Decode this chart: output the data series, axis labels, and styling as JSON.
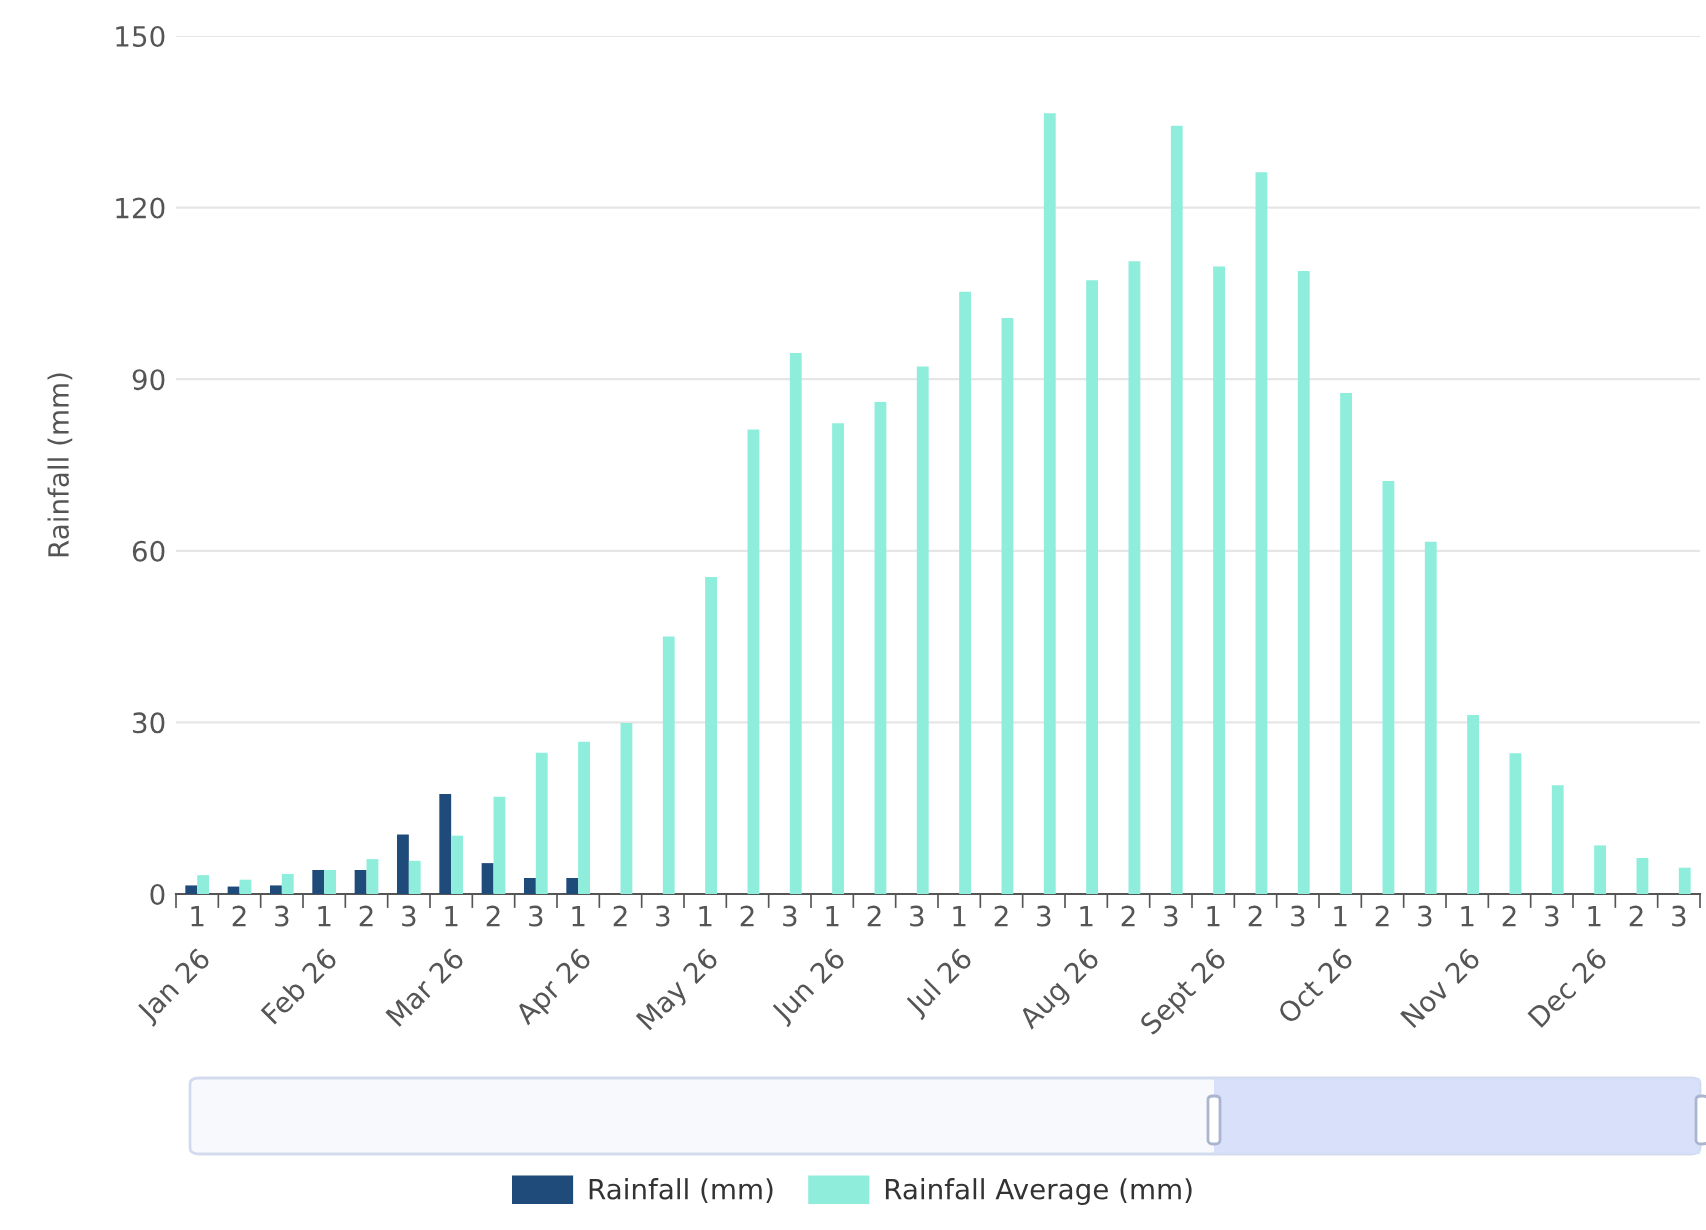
{
  "chart_data": {
    "type": "bar",
    "ylabel": "Rainfall (mm)",
    "categories": [
      "1",
      "2",
      "3",
      "1",
      "2",
      "3",
      "1",
      "2",
      "3",
      "1",
      "2",
      "3",
      "1",
      "2",
      "3",
      "1",
      "2",
      "3",
      "1",
      "2",
      "3",
      "1",
      "2",
      "3",
      "1",
      "2",
      "3",
      "1",
      "2",
      "3",
      "1",
      "2",
      "3",
      "1",
      "2",
      "3"
    ],
    "annotations": [
      "Jan 26",
      "Feb 26",
      "Mar 26",
      "Apr 26",
      "May 26",
      "Jun 26",
      "Jul 26",
      "Aug 26",
      "Sept 26",
      "Oct 26",
      "Nov 26",
      "Dec 26"
    ],
    "series": [
      {
        "name": "Rainfall (mm)",
        "color": "#1f4b7a",
        "values": [
          1.5,
          1.3,
          1.5,
          4.2,
          4.2,
          10.4,
          17.5,
          5.4,
          2.8,
          2.8,
          null,
          null,
          null,
          null,
          null,
          null,
          null,
          null,
          null,
          null,
          null,
          null,
          null,
          null,
          null,
          null,
          null,
          null,
          null,
          null,
          null,
          null,
          null,
          null,
          null,
          null
        ]
      },
      {
        "name": "Rainfall Average (mm)",
        "color": "#8eeedb",
        "values": [
          3.3,
          2.5,
          3.5,
          4.2,
          6.1,
          5.8,
          10.2,
          17.0,
          24.7,
          26.6,
          29.9,
          45.0,
          55.4,
          81.2,
          94.6,
          82.3,
          86.0,
          92.2,
          105.3,
          100.7,
          136.5,
          107.3,
          110.6,
          134.3,
          109.7,
          126.2,
          108.9,
          87.6,
          72.2,
          61.6,
          31.3,
          24.6,
          19.0,
          8.5,
          6.3,
          4.6
        ]
      }
    ],
    "ylim": [
      0,
      150
    ],
    "yticks": [
      0,
      30,
      60,
      90,
      120,
      150
    ],
    "grid": "y",
    "legend": "bottom"
  }
}
